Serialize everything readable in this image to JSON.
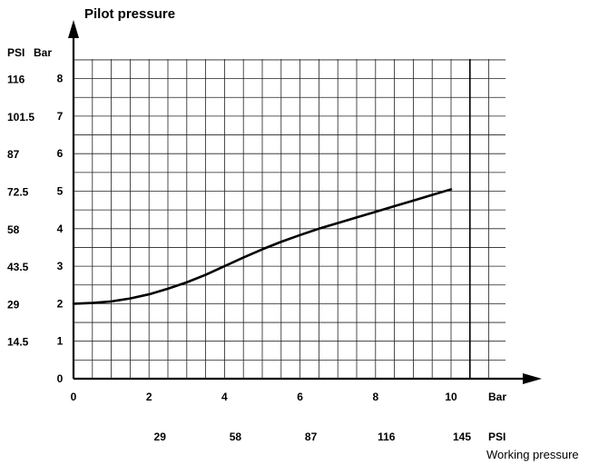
{
  "chart_data": {
    "type": "line",
    "title": "",
    "ylabel": "Pilot pressure",
    "xlabel": "Working pressure",
    "xlim": [
      0,
      12.5
    ],
    "ylim": [
      0,
      8.5
    ],
    "grid": true,
    "x_unit_primary": "Bar",
    "x_unit_secondary": "PSI",
    "y_unit_primary": "Bar",
    "y_unit_secondary": "PSI",
    "x_ticks_bar": [
      "0",
      "2",
      "4",
      "6",
      "8",
      "10"
    ],
    "x_ticks_psi": [
      "29",
      "58",
      "87",
      "116",
      "145"
    ],
    "y_ticks_bar": [
      "0",
      "1",
      "2",
      "3",
      "4",
      "5",
      "6",
      "7",
      "8"
    ],
    "y_ticks_psi": [
      "14.5",
      "29",
      "43.5",
      "58",
      "72.5",
      "87",
      "101.5",
      "116"
    ],
    "series": [
      {
        "x": [
          0,
          0.5,
          1,
          1.5,
          2,
          2.5,
          3,
          3.5,
          4,
          4.5,
          5,
          5.5,
          6,
          6.5,
          7,
          7.5,
          8,
          8.5,
          9,
          9.5,
          10
        ],
        "y": [
          2.0,
          2.02,
          2.06,
          2.14,
          2.25,
          2.4,
          2.57,
          2.77,
          3.0,
          3.23,
          3.45,
          3.65,
          3.83,
          4.0,
          4.15,
          4.3,
          4.45,
          4.6,
          4.75,
          4.9,
          5.05
        ]
      }
    ],
    "marker_x": 10.5
  }
}
